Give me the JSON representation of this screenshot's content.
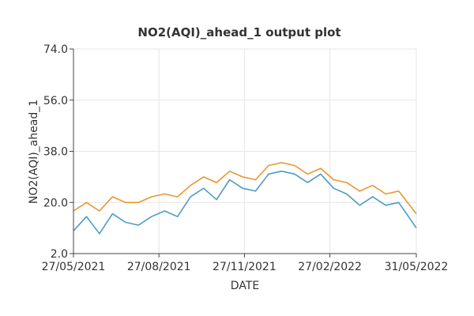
{
  "chart_data": {
    "type": "line",
    "title": "NO2(AQI)_ahead_1 output plot",
    "xlabel": "DATE",
    "ylabel": "NO2(AQI)_ahead_1",
    "xlim": [
      "2021-05-27",
      "2022-05-31"
    ],
    "ylim": [
      2.0,
      74.0
    ],
    "x_ticks": [
      "27/05/2021",
      "27/08/2021",
      "27/11/2021",
      "27/02/2022",
      "31/05/2022"
    ],
    "y_ticks": [
      "2.0",
      "20.0",
      "38.0",
      "56.0",
      "74.0"
    ],
    "grid": true,
    "legend": "none",
    "colors": {
      "series_a": "#4e9cc0",
      "series_b": "#e8962e"
    },
    "series": [
      {
        "color": "#4e9cc0",
        "x": [
          "2021-05-27",
          "2021-06-10",
          "2021-06-24",
          "2021-07-08",
          "2021-07-22",
          "2021-08-05",
          "2021-08-19",
          "2021-09-02",
          "2021-09-16",
          "2021-09-30",
          "2021-10-14",
          "2021-10-28",
          "2021-11-11",
          "2021-11-25",
          "2021-12-09",
          "2021-12-23",
          "2022-01-06",
          "2022-01-20",
          "2022-02-03",
          "2022-02-17",
          "2022-03-03",
          "2022-03-17",
          "2022-03-31",
          "2022-04-14",
          "2022-04-28",
          "2022-05-12",
          "2022-05-31"
        ],
        "y": [
          10,
          15,
          9,
          16,
          13,
          12,
          15,
          17,
          15,
          22,
          25,
          21,
          28,
          25,
          24,
          30,
          31,
          30,
          27,
          30,
          25,
          23,
          19,
          22,
          19,
          20,
          11
        ]
      },
      {
        "color": "#e8962e",
        "x": [
          "2021-05-27",
          "2021-06-10",
          "2021-06-24",
          "2021-07-08",
          "2021-07-22",
          "2021-08-05",
          "2021-08-19",
          "2021-09-02",
          "2021-09-16",
          "2021-09-30",
          "2021-10-14",
          "2021-10-28",
          "2021-11-11",
          "2021-11-25",
          "2021-12-09",
          "2021-12-23",
          "2022-01-06",
          "2022-01-20",
          "2022-02-03",
          "2022-02-17",
          "2022-03-03",
          "2022-03-17",
          "2022-03-31",
          "2022-04-14",
          "2022-04-28",
          "2022-05-12",
          "2022-05-31"
        ],
        "y": [
          17,
          20,
          17,
          22,
          20,
          20,
          22,
          23,
          22,
          26,
          29,
          27,
          31,
          29,
          28,
          33,
          34,
          33,
          30,
          32,
          28,
          27,
          24,
          26,
          23,
          24,
          16
        ]
      }
    ]
  }
}
